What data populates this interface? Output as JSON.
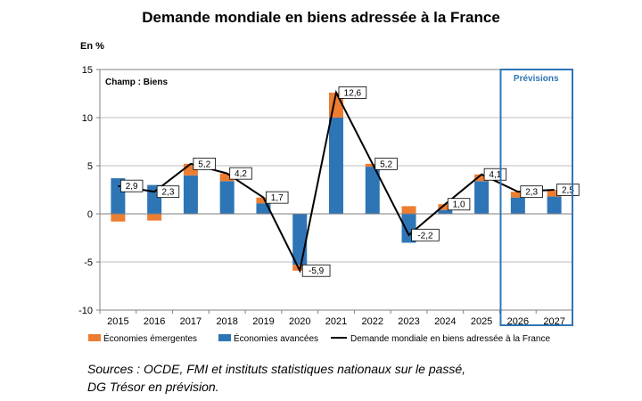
{
  "chart_data": {
    "type": "bar",
    "title": "Demande mondiale en biens adressée à la France",
    "ylabel": "En %",
    "ylim": [
      -10,
      15
    ],
    "yticks": [
      15,
      10,
      5,
      0,
      -5,
      -10
    ],
    "categories": [
      "2015",
      "2016",
      "2017",
      "2018",
      "2019",
      "2020",
      "2021",
      "2022",
      "2023",
      "2024",
      "2025",
      "2026",
      "2027"
    ],
    "stacked": true,
    "series": [
      {
        "name": "Économies émergentes",
        "kind": "bar",
        "color": "#ED7D31",
        "values": [
          -0.8,
          -0.7,
          1.2,
          0.8,
          0.6,
          -0.6,
          2.6,
          0.3,
          0.8,
          0.6,
          0.7,
          0.6,
          0.7
        ]
      },
      {
        "name": "Économies avancées",
        "kind": "bar",
        "color": "#2E75B6",
        "values": [
          3.7,
          3.0,
          4.0,
          3.4,
          1.1,
          -5.3,
          10.0,
          4.9,
          -3.0,
          0.4,
          3.4,
          1.7,
          1.8
        ]
      },
      {
        "name": "Demande mondiale en biens adressée à la France",
        "kind": "line",
        "color": "#000000",
        "values": [
          2.9,
          2.3,
          5.2,
          4.2,
          1.7,
          -5.9,
          12.6,
          5.2,
          -2.2,
          1.0,
          4.1,
          2.3,
          2.5
        ],
        "labels": [
          "2,9",
          "2,3",
          "5,2",
          "4,2",
          "1,7",
          "-5,9",
          "12,6",
          "5,2",
          "-2,2",
          "1,0",
          "4,1",
          "2,3",
          "2,5"
        ]
      }
    ],
    "annotations": {
      "champ": "Champ : Biens",
      "forecast_label": "Prévisions",
      "forecast_categories": [
        "2026",
        "2027"
      ]
    }
  },
  "source_lines": [
    "Sources : OCDE, FMI et instituts statistiques nationaux sur le passé,",
    "DG Trésor en prévision."
  ],
  "colors": {
    "grid": "#BFBFBF",
    "forecast_box": "#2E75B6"
  }
}
